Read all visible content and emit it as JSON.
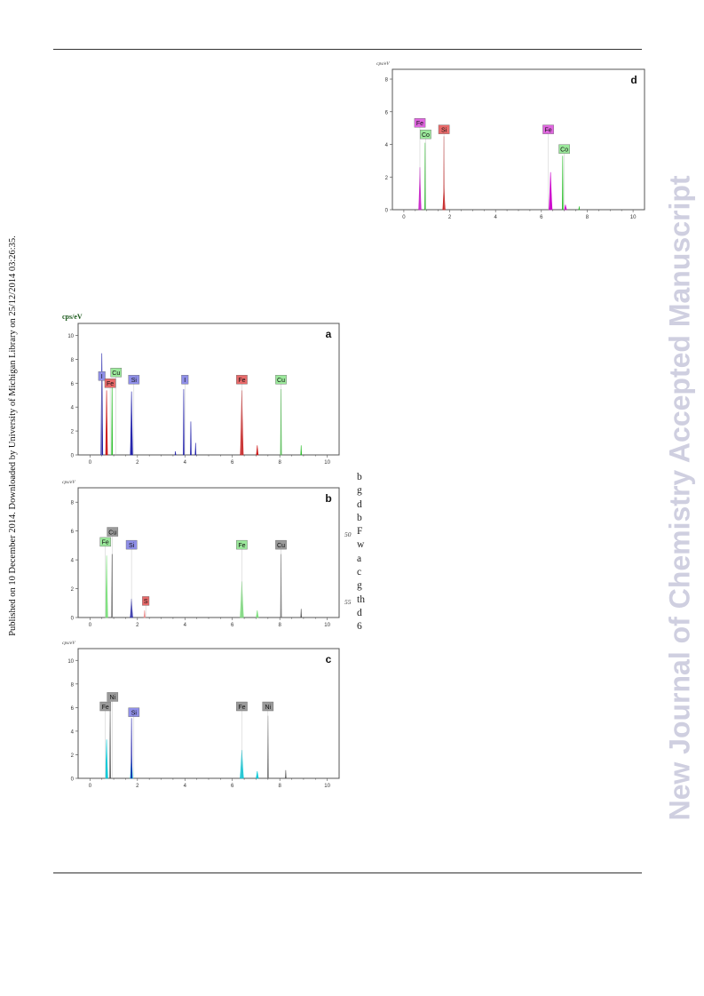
{
  "page": {
    "side_text": "Published on 10 December 2014. Downloaded by University of Michigan Library on 25/12/2014 03:26:35.",
    "watermark": "New Journal of Chemistry Accepted Manuscript",
    "text_fragments": [
      "b",
      "g",
      "d",
      "b",
      "F",
      "w",
      "a",
      "c",
      "g",
      "th",
      "d",
      "6"
    ],
    "line_numbers": [
      "50",
      "55"
    ]
  },
  "colors": {
    "blue": "#1a1aa8",
    "red": "#cc1111",
    "green": "#22bb22",
    "gray": "#555555",
    "magenta": "#cc00cc",
    "cyan": "#00c8d8",
    "pale_green": "#7be07b"
  },
  "chart_data": [
    {
      "id": "a",
      "type": "line",
      "panel_label": "a",
      "ylabel": "cps/eV",
      "xlim": [
        -0.5,
        10.5
      ],
      "ylim": [
        0,
        11
      ],
      "x_ticks": [
        0,
        2,
        4,
        6,
        8,
        10
      ],
      "y_ticks": [
        0,
        2,
        4,
        6,
        8,
        10
      ],
      "series": [
        {
          "color": "#1a1aa8",
          "peaks": [
            [
              0.5,
              8.5,
              0.04
            ],
            [
              1.75,
              5.3,
              0.05
            ],
            [
              3.95,
              5.5,
              0.02
            ],
            [
              4.25,
              2.8,
              0.02
            ],
            [
              4.45,
              1.0,
              0.02
            ],
            [
              3.6,
              0.3,
              0.02
            ]
          ]
        },
        {
          "color": "#cc1111",
          "peaks": [
            [
              0.7,
              5.4,
              0.04
            ],
            [
              6.4,
              5.4,
              0.06
            ],
            [
              7.05,
              0.8,
              0.04
            ]
          ]
        },
        {
          "color": "#22bb22",
          "peaks": [
            [
              0.93,
              6.2,
              0.02
            ],
            [
              8.05,
              5.5,
              0.02
            ],
            [
              8.9,
              0.8,
              0.02
            ]
          ]
        }
      ],
      "labels": [
        {
          "text": "I",
          "x": 0.5,
          "y": 6.3,
          "color": "blue"
        },
        {
          "text": "Cu",
          "x": 1.1,
          "y": 6.6,
          "color": "green"
        },
        {
          "text": "Fe",
          "x": 0.85,
          "y": 5.7,
          "color": "red"
        },
        {
          "text": "Si",
          "x": 1.85,
          "y": 6.0,
          "color": "blue"
        },
        {
          "text": "I",
          "x": 4.0,
          "y": 6.0,
          "color": "blue"
        },
        {
          "text": "Fe",
          "x": 6.4,
          "y": 6.0,
          "color": "red"
        },
        {
          "text": "Cu",
          "x": 8.05,
          "y": 6.0,
          "color": "green"
        }
      ]
    },
    {
      "id": "b",
      "type": "line",
      "panel_label": "b",
      "ylabel": "cps/eV",
      "xlim": [
        -0.5,
        10.5
      ],
      "ylim": [
        0,
        9
      ],
      "x_ticks": [
        0,
        2,
        4,
        6,
        8,
        10
      ],
      "y_ticks": [
        0,
        2,
        4,
        6,
        8
      ],
      "series": [
        {
          "color": "#7be07b",
          "peaks": [
            [
              0.7,
              4.3,
              0.05
            ],
            [
              6.4,
              2.5,
              0.07
            ],
            [
              7.05,
              0.5,
              0.05
            ]
          ]
        },
        {
          "color": "#555555",
          "peaks": [
            [
              0.93,
              4.4,
              0.02
            ],
            [
              8.05,
              4.4,
              0.02
            ],
            [
              8.9,
              0.6,
              0.02
            ]
          ]
        },
        {
          "color": "#1a1aa8",
          "peaks": [
            [
              1.75,
              1.3,
              0.05
            ]
          ]
        },
        {
          "color": "#ee8888",
          "peaks": [
            [
              2.3,
              0.5,
              0.03
            ]
          ]
        }
      ],
      "labels": [
        {
          "text": "Cu",
          "x": 0.95,
          "y": 5.7,
          "color": "gray"
        },
        {
          "text": "Fe",
          "x": 0.65,
          "y": 5.0,
          "color": "green"
        },
        {
          "text": "Si",
          "x": 1.75,
          "y": 4.8,
          "color": "blue"
        },
        {
          "text": "S",
          "x": 2.35,
          "y": 0.9,
          "color": "red"
        },
        {
          "text": "Fe",
          "x": 6.4,
          "y": 4.8,
          "color": "green"
        },
        {
          "text": "Cu",
          "x": 8.05,
          "y": 4.8,
          "color": "gray"
        }
      ]
    },
    {
      "id": "c",
      "type": "line",
      "panel_label": "c",
      "ylabel": "cps/eV",
      "xlim": [
        -0.5,
        10.5
      ],
      "ylim": [
        0,
        11
      ],
      "x_ticks": [
        0,
        2,
        4,
        6,
        8,
        10
      ],
      "y_ticks": [
        0,
        2,
        4,
        6,
        8,
        10
      ],
      "series": [
        {
          "color": "#00c8d8",
          "peaks": [
            [
              0.7,
              3.3,
              0.05
            ],
            [
              1.75,
              2.0,
              0.05
            ],
            [
              6.4,
              2.4,
              0.07
            ],
            [
              7.05,
              0.6,
              0.05
            ]
          ]
        },
        {
          "color": "#555555",
          "peaks": [
            [
              0.85,
              5.8,
              0.02
            ],
            [
              7.5,
              5.3,
              0.02
            ],
            [
              8.25,
              0.7,
              0.02
            ]
          ]
        },
        {
          "color": "#1a1aa8",
          "peaks": [
            [
              1.75,
              5.1,
              0.02
            ]
          ]
        }
      ],
      "labels": [
        {
          "text": "Ni",
          "x": 0.95,
          "y": 6.6,
          "color": "gray"
        },
        {
          "text": "Fe",
          "x": 0.65,
          "y": 5.8,
          "color": "gray"
        },
        {
          "text": "Si",
          "x": 1.85,
          "y": 5.3,
          "color": "blue"
        },
        {
          "text": "Fe",
          "x": 6.4,
          "y": 5.8,
          "color": "gray"
        },
        {
          "text": "Ni",
          "x": 7.5,
          "y": 5.8,
          "color": "gray"
        }
      ]
    },
    {
      "id": "d",
      "type": "line",
      "panel_label": "d",
      "ylabel": "cps/eV",
      "xlim": [
        -0.5,
        10.5
      ],
      "ylim": [
        0,
        8.6
      ],
      "x_ticks": [
        0,
        2,
        4,
        6,
        8,
        10
      ],
      "y_ticks": [
        0,
        2,
        4,
        6,
        8
      ],
      "series": [
        {
          "color": "#cc00cc",
          "peaks": [
            [
              0.7,
              2.6,
              0.05
            ],
            [
              6.4,
              2.3,
              0.07
            ],
            [
              7.05,
              0.3,
              0.05
            ]
          ]
        },
        {
          "color": "#22bb22",
          "peaks": [
            [
              0.93,
              4.1,
              0.02
            ],
            [
              6.93,
              3.3,
              0.02
            ],
            [
              7.65,
              0.2,
              0.02
            ]
          ]
        },
        {
          "color": "#cc1111",
          "peaks": [
            [
              1.75,
              1.5,
              0.05
            ],
            [
              1.75,
              4.5,
              0.015
            ]
          ]
        }
      ],
      "labels": [
        {
          "text": "Fe",
          "x": 0.7,
          "y": 5.1,
          "color": "magenta"
        },
        {
          "text": "Co",
          "x": 0.95,
          "y": 4.4,
          "color": "green"
        },
        {
          "text": "Si",
          "x": 1.75,
          "y": 4.7,
          "color": "red"
        },
        {
          "text": "Fe",
          "x": 6.3,
          "y": 4.7,
          "color": "magenta"
        },
        {
          "text": "Co",
          "x": 7.0,
          "y": 3.5,
          "color": "green"
        }
      ]
    }
  ]
}
